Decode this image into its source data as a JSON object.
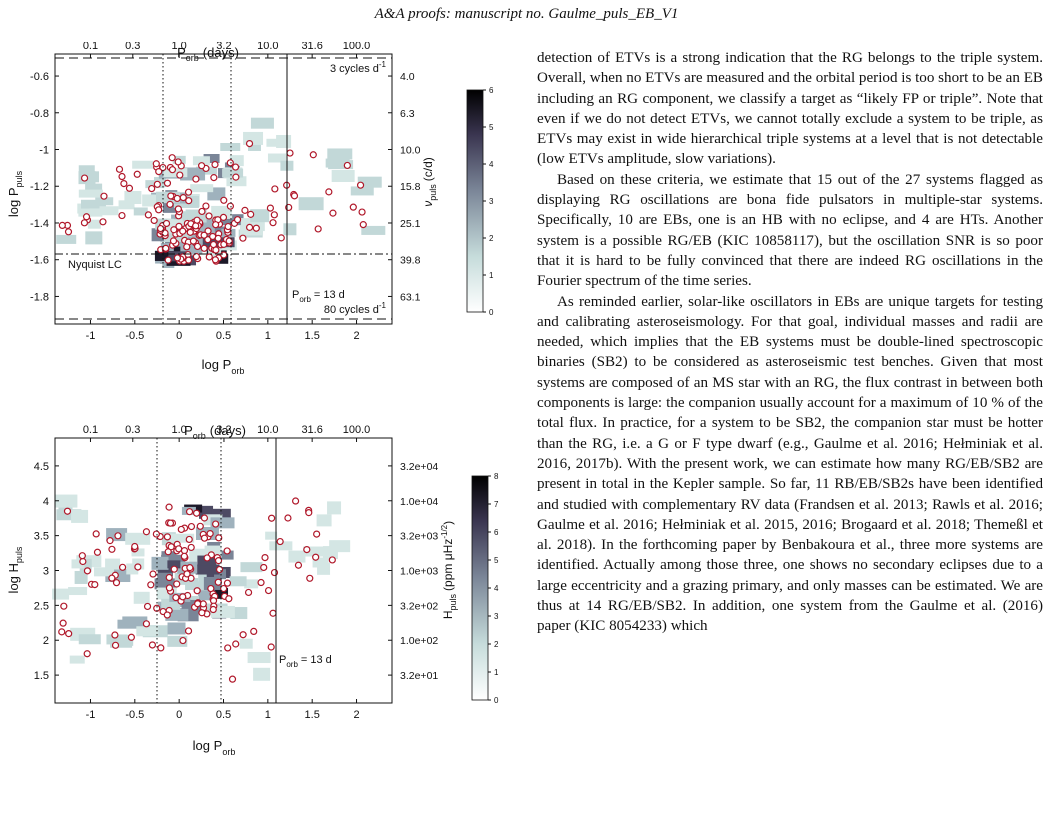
{
  "running_head": "A&A proofs: manuscript no. Gaulme_puls_EB_V1",
  "colors": {
    "marker_edge": "#b0182a",
    "cmap_low": "#e4f0ee",
    "cmap_high": "#000000",
    "bin_fill": "#cfe3e1"
  },
  "chart_data": [
    {
      "type": "heatmap",
      "xlabel": "log P",
      "xlabel_sub": "orb",
      "ylabel": "log P",
      "ylabel_sub": "puls",
      "top_axis_label": "P",
      "top_axis_sub": "orb",
      "top_axis_unit": "(days)",
      "right_axis_label": "ν",
      "right_axis_sub": "puls",
      "right_axis_unit": "(c/d)",
      "xlim": [
        -1.4,
        2.4
      ],
      "ylim": [
        -1.95,
        -0.48
      ],
      "xticks": [
        "-1",
        "-0.5",
        "0",
        "0.5",
        "1",
        "1.5",
        "2"
      ],
      "yticks": [
        "-1.8",
        "-1.6",
        "-1.4",
        "-1.2",
        "-1",
        "-0.8",
        "-0.6"
      ],
      "top_ticks": [
        "0.1",
        "0.3",
        "1.0",
        "3.2",
        "10.0",
        "31.6",
        "100.0"
      ],
      "right_ticks": [
        "63.1",
        "39.8",
        "25.1",
        "15.8",
        "10.0",
        "6.3",
        "4.0"
      ],
      "colorbar_ticks": [
        "0",
        "1",
        "2",
        "3",
        "4",
        "5",
        "6"
      ],
      "colorbar_max": 6,
      "annotations": {
        "upper_limit": "3 cycles d",
        "upper_limit_exp": "-1",
        "lower_limit": "80 cycles d",
        "lower_limit_exp": "-1",
        "nyquist": "Nyquist LC",
        "porb_line": "P",
        "porb_line_sub": "orb",
        "porb_line_value": "= 13 d"
      },
      "reference_lines": {
        "dashed_y": [
          -0.523,
          -1.903
        ],
        "dashdot_y": -1.39,
        "dotted_x": [
          -0.2,
          0.52
        ],
        "solid_x": 1.11
      }
    },
    {
      "type": "heatmap",
      "xlabel": "log P",
      "xlabel_sub": "orb",
      "ylabel": "log H",
      "ylabel_sub": "puls",
      "top_axis_label": "P",
      "top_axis_sub": "orb",
      "top_axis_unit": "(days)",
      "right_axis_label": "H",
      "right_axis_sub": "puls",
      "right_axis_unit": "(ppm μHz",
      "right_axis_unit_exp": "-1/2",
      "right_axis_unit_end": ")",
      "xlim": [
        -1.4,
        2.4
      ],
      "ylim": [
        1.1,
        4.9
      ],
      "xticks": [
        "-1",
        "-0.5",
        "0",
        "0.5",
        "1",
        "1.5",
        "2"
      ],
      "yticks": [
        "1.5",
        "2",
        "2.5",
        "3",
        "3.5",
        "4",
        "4.5"
      ],
      "top_ticks": [
        "0.1",
        "0.3",
        "1.0",
        "3.2",
        "10.0",
        "31.6",
        "100.0"
      ],
      "right_ticks": [
        "3.2e+01",
        "1.0e+02",
        "3.2e+02",
        "1.0e+03",
        "3.2e+03",
        "1.0e+04",
        "3.2e+04"
      ],
      "colorbar_ticks": [
        "0",
        "1",
        "2",
        "3",
        "4",
        "5",
        "6",
        "7",
        "8"
      ],
      "colorbar_max": 8,
      "annotations": {
        "porb_line": "P",
        "porb_line_sub": "orb",
        "porb_line_value": "= 13 d"
      },
      "reference_lines": {
        "dotted_x": [
          -0.2,
          0.52
        ],
        "solid_x": 1.11
      }
    }
  ],
  "body_text": [
    "detection of ETVs is a strong indication that the RG belongs to the triple system. Overall, when no ETVs are measured and the orbital period is too short to be an EB including an RG component, we classify a target as “likely FP or triple”. Note that even if we do not detect ETVs, we cannot totally exclude a system to be triple, as ETVs may exist in wide hierarchical triple systems at a level that is not detectable (low ETVs amplitude, slow variations).",
    "Based on these criteria, we estimate that 15 out of the 27 systems flagged as displaying RG oscillations are bona fide pulsators in multiple-star systems. Specifically, 10 are EBs, one is an HB with no eclipse, and 4 are HTs. Another system is a possible RG/EB (KIC 10858117), but the oscillation SNR is so poor that it is hard to be fully convinced that there are indeed RG oscillations in the Fourier spectrum of the time series.",
    "As reminded earlier, solar-like oscillators in EBs are unique targets for testing and calibrating asteroseismology. For that goal, individual masses and radii are needed, which implies that the EB systems must be double-lined spectroscopic binaries (SB2) to be considered as asteroseismic test benches. Given that most systems are composed of an MS star with an RG, the flux contrast in between both components is large: the companion usually account for a maximum of 10 % of the total flux. In practice, for a system to be SB2, the companion star must be hotter than the RG, i.e. a G or F type dwarf (e.g., Gaulme et al. 2016; Hełminiak et al. 2016, 2017b). With the present work, we can estimate how many RG/EB/SB2 are present in total in the Kepler sample. So far, 11 RB/EB/SB2s have been identified and studied with complementary RV data (Frandsen et al. 2013; Rawls et al. 2016; Gaulme et al. 2016; Hełminiak et al. 2015, 2016; Brogaard et al. 2018; Themeßl et al. 2018). In the forthcoming paper by Benbakoura et al., three more systems are identified. Actually among those three, one shows no secondary eclipses due to a large eccentricity and a grazing primary, and only masses can be estimated. We are thus at 14 RG/EB/SB2. In addition, one system from the Gaulme et al. (2016) paper (KIC 8054233) which"
  ]
}
